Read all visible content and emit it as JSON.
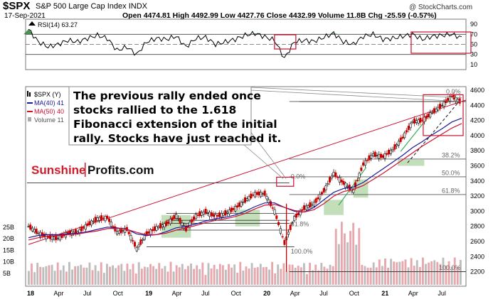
{
  "header": {
    "symbol": "$SPX",
    "name": "S&P 500 Large Cap Index",
    "exchange": "INDX",
    "credit": "@ StockCharts.com",
    "date": "17-Sep-2021",
    "stats": "Open 4474.81  High 4492.99  Low 4427.76  Close 4432.99  Volume 11.8B  Chg -25.59 (-0.57%)"
  },
  "rsi_panel": {
    "label": "RSI(14) 63.27",
    "axis": [
      "90",
      "70",
      "50",
      "30",
      "10"
    ]
  },
  "price_panel": {
    "legend": [
      "$SPX (Y)",
      "MA(40) 41",
      "MA(50) 40",
      "Volume 11"
    ],
    "price_axis": [
      "4600",
      "4400",
      "4200",
      "4000",
      "3800",
      "3600",
      "3400",
      "3200",
      "3000",
      "2800",
      "2600",
      "2400",
      "2200"
    ],
    "volume_axis": [
      "25B",
      "20B",
      "15B",
      "10B",
      "5B"
    ],
    "fib_labels": [
      "0.0%",
      "38.2%",
      "50.0%",
      "61.8%",
      "100.0%",
      "0.0%",
      "61.8%",
      "100.0%"
    ],
    "annotation_lines": [
      "The previous rally ended once",
      "stocks rallied to the 1.618",
      "Fibonacci extension of the initial",
      "rally. Stocks have just reached it."
    ],
    "brand_left": "Sunshine",
    "brand_right": "Profits.com"
  },
  "x_axis": [
    "18",
    "Apr",
    "Jul",
    "Oct",
    "19",
    "Apr",
    "Jul",
    "Oct",
    "20",
    "Apr",
    "Jul",
    "Oct",
    "21",
    "Apr",
    "Jul"
  ],
  "colors": {
    "up": "#000000",
    "down": "#cc0000",
    "ma40": "#1a1a99",
    "ma50": "#cc1133",
    "rsi": "#000000",
    "rsi_fill": "#2e7d32",
    "box": "#c8102e",
    "fibline": "#555555",
    "green_line": "#2fa84f",
    "shade": "#aed4a3",
    "annot_border": "#888888"
  },
  "chart_data": {
    "type": "line",
    "title": "$SPX S&P 500 Large Cap Index INDX",
    "x": [
      "2018-01",
      "2018-02",
      "2018-03",
      "2018-04",
      "2018-05",
      "2018-06",
      "2018-07",
      "2018-08",
      "2018-09",
      "2018-10",
      "2018-11",
      "2018-12",
      "2019-01",
      "2019-02",
      "2019-03",
      "2019-04",
      "2019-05",
      "2019-06",
      "2019-07",
      "2019-08",
      "2019-09",
      "2019-10",
      "2019-11",
      "2019-12",
      "2020-01",
      "2020-02",
      "2020-03",
      "2020-04",
      "2020-05",
      "2020-06",
      "2020-07",
      "2020-08",
      "2020-09",
      "2020-10",
      "2020-11",
      "2020-12",
      "2021-01",
      "2021-02",
      "2021-03",
      "2021-04",
      "2021-05",
      "2021-06",
      "2021-07",
      "2021-08",
      "2021-09"
    ],
    "series": [
      {
        "name": "$SPX",
        "values": [
          2800,
          2710,
          2660,
          2640,
          2710,
          2720,
          2820,
          2900,
          2915,
          2720,
          2760,
          2505,
          2700,
          2780,
          2830,
          2940,
          2760,
          2940,
          2990,
          2930,
          2970,
          3040,
          3140,
          3230,
          3230,
          3000,
          2580,
          2910,
          3040,
          3100,
          3270,
          3500,
          3370,
          3270,
          3620,
          3750,
          3720,
          3810,
          3970,
          4180,
          4200,
          4300,
          4400,
          4520,
          4433
        ]
      },
      {
        "name": "MA(40)",
        "values": [
          2650,
          2680,
          2690,
          2690,
          2700,
          2710,
          2730,
          2760,
          2790,
          2780,
          2760,
          2700,
          2680,
          2690,
          2730,
          2780,
          2800,
          2830,
          2870,
          2900,
          2920,
          2950,
          3000,
          3060,
          3110,
          3110,
          3050,
          3000,
          2990,
          3050,
          3150,
          3250,
          3300,
          3320,
          3380,
          3470,
          3560,
          3650,
          3740,
          3840,
          3920,
          4010,
          4090,
          4180,
          4230
        ]
      },
      {
        "name": "MA(50)",
        "values": [
          2620,
          2650,
          2670,
          2680,
          2690,
          2700,
          2720,
          2740,
          2770,
          2775,
          2760,
          2720,
          2690,
          2690,
          2710,
          2750,
          2780,
          2810,
          2850,
          2880,
          2900,
          2930,
          2970,
          3030,
          3080,
          3090,
          3050,
          3010,
          2990,
          3020,
          3100,
          3200,
          3260,
          3290,
          3340,
          3420,
          3500,
          3590,
          3680,
          3770,
          3860,
          3940,
          4020,
          4100,
          4160
        ]
      },
      {
        "name": "RSI(14)",
        "values": [
          80,
          55,
          45,
          50,
          58,
          55,
          62,
          68,
          62,
          38,
          45,
          30,
          55,
          62,
          60,
          66,
          45,
          62,
          64,
          50,
          55,
          60,
          68,
          72,
          65,
          58,
          22,
          55,
          58,
          56,
          64,
          72,
          55,
          50,
          66,
          70,
          60,
          62,
          66,
          70,
          60,
          66,
          68,
          70,
          63
        ]
      }
    ],
    "xlabel": "",
    "ylabel": "",
    "ylim": [
      2200,
      4700
    ],
    "rsi_ylim": [
      0,
      100
    ],
    "grid": false,
    "fibonacci": {
      "high": 4545,
      "retracements": [
        {
          "label": "0.0%",
          "value": 4450
        },
        {
          "label": "38.2%",
          "value": 3690
        },
        {
          "label": "50.0%",
          "value": 3455
        },
        {
          "label": "61.8%",
          "value": 3220
        },
        {
          "label": "100.0%",
          "value": 2200
        }
      ]
    },
    "annotation": "The previous rally ended once stocks rallied to the 1.618 Fibonacci extension of the initial rally. Stocks have just reached it."
  }
}
